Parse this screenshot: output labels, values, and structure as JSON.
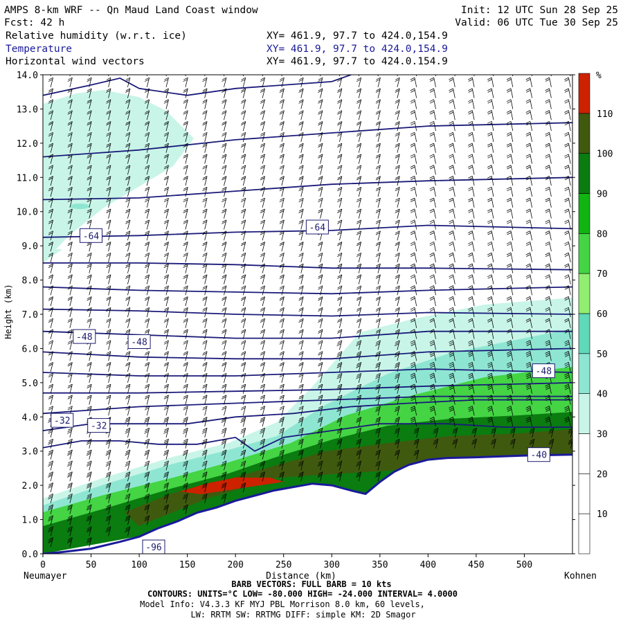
{
  "header": {
    "title": "AMPS 8-km WRF -- Qn Maud Land Coast window",
    "init": "Init: 12 UTC Sun 28 Sep 25",
    "fcst": "Fcst:   42 h",
    "valid": "Valid: 06 UTC Tue 30 Sep 25",
    "fields": [
      {
        "name": "Relative humidity (w.r.t. ice)",
        "xy": "XY= 461.9, 97.7 to 424.0,154.9"
      },
      {
        "name": "Temperature",
        "xy": "XY= 461.9, 97.7 to 424.0,154.9"
      },
      {
        "name": "Horizontal wind vectors",
        "xy": "XY= 461.9, 97.7 to 424.0.154.9"
      }
    ]
  },
  "chart_data": {
    "type": "heatmap",
    "xlabel": "Distance (km)",
    "ylabel": "Height (km)",
    "xlim": [
      0,
      550
    ],
    "ylim": [
      0,
      14
    ],
    "xticks": [
      0,
      50,
      100,
      150,
      200,
      250,
      300,
      350,
      400,
      450,
      500
    ],
    "yticks": [
      "0.0",
      "1.0",
      "2.0",
      "3.0",
      "4.0",
      "5.0",
      "6.0",
      "7.0",
      "8.0",
      "9.0",
      "10.0",
      "11.0",
      "12.0",
      "13.0",
      "14.0"
    ],
    "endpoints": {
      "left": "Neumayer",
      "right": "Kohnen"
    },
    "colorbar": {
      "unit": "%",
      "levels": [
        10,
        20,
        30,
        40,
        50,
        60,
        70,
        80,
        90,
        100,
        110
      ],
      "colors": [
        "#ffffff",
        "#ffffff",
        "#ffffff",
        "#c8f5e8",
        "#8ee6d2",
        "#5fd9b8",
        "#90ee70",
        "#44d444",
        "#11b411",
        "#0a7c10",
        "#3f5a0e",
        "#cc2200"
      ]
    },
    "terrain": [
      [
        0,
        0
      ],
      [
        20,
        0.05
      ],
      [
        50,
        0.15
      ],
      [
        80,
        0.35
      ],
      [
        100,
        0.5
      ],
      [
        120,
        0.75
      ],
      [
        140,
        0.95
      ],
      [
        160,
        1.2
      ],
      [
        180,
        1.35
      ],
      [
        200,
        1.55
      ],
      [
        220,
        1.7
      ],
      [
        240,
        1.85
      ],
      [
        260,
        1.95
      ],
      [
        280,
        2.05
      ],
      [
        300,
        2.0
      ],
      [
        320,
        1.85
      ],
      [
        335,
        1.75
      ],
      [
        350,
        2.1
      ],
      [
        365,
        2.4
      ],
      [
        380,
        2.6
      ],
      [
        400,
        2.75
      ],
      [
        420,
        2.8
      ],
      [
        450,
        2.82
      ],
      [
        480,
        2.85
      ],
      [
        500,
        2.87
      ],
      [
        550,
        2.9
      ]
    ],
    "temperature_contours": [
      {
        "value": -32,
        "label": "-32",
        "points": [
          [
            0,
            3.1
          ],
          [
            40,
            3.3
          ],
          [
            80,
            3.3
          ],
          [
            120,
            3.2
          ],
          [
            160,
            3.2
          ],
          [
            200,
            3.4
          ],
          [
            220,
            3.0
          ],
          [
            250,
            3.4
          ],
          [
            300,
            3.6
          ],
          [
            350,
            3.8
          ],
          [
            420,
            3.8
          ],
          [
            480,
            3.7
          ],
          [
            550,
            3.7
          ]
        ]
      },
      {
        "value": -36,
        "label": "",
        "points": [
          [
            0,
            3.6
          ],
          [
            50,
            3.8
          ],
          [
            100,
            3.8
          ],
          [
            150,
            3.8
          ],
          [
            200,
            4.0
          ],
          [
            260,
            4.1
          ],
          [
            320,
            4.3
          ],
          [
            380,
            4.4
          ],
          [
            450,
            4.5
          ],
          [
            550,
            4.5
          ]
        ]
      },
      {
        "value": -40,
        "label": "",
        "points": [
          [
            0,
            4.1
          ],
          [
            50,
            4.2
          ],
          [
            100,
            4.3
          ],
          [
            200,
            4.4
          ],
          [
            300,
            4.5
          ],
          [
            400,
            4.6
          ],
          [
            550,
            4.6
          ]
        ]
      },
      {
        "value": -44,
        "label": "",
        "points": [
          [
            0,
            4.7
          ],
          [
            100,
            4.7
          ],
          [
            200,
            4.75
          ],
          [
            300,
            4.8
          ],
          [
            400,
            4.9
          ],
          [
            550,
            5.0
          ]
        ]
      },
      {
        "value": -48,
        "label": "-48",
        "points": [
          [
            0,
            5.3
          ],
          [
            100,
            5.2
          ],
          [
            200,
            5.2
          ],
          [
            300,
            5.3
          ],
          [
            400,
            5.4
          ],
          [
            550,
            5.3
          ]
        ]
      },
      {
        "value": -52,
        "label": "",
        "points": [
          [
            0,
            5.9
          ],
          [
            100,
            5.75
          ],
          [
            200,
            5.7
          ],
          [
            300,
            5.7
          ],
          [
            400,
            5.9
          ],
          [
            550,
            6.0
          ]
        ]
      },
      {
        "value": -56,
        "label": "",
        "points": [
          [
            0,
            6.5
          ],
          [
            100,
            6.4
          ],
          [
            200,
            6.3
          ],
          [
            300,
            6.3
          ],
          [
            400,
            6.5
          ],
          [
            550,
            6.5
          ]
        ]
      },
      {
        "value": -60,
        "label": "",
        "points": [
          [
            0,
            7.15
          ],
          [
            100,
            7.1
          ],
          [
            200,
            7.0
          ],
          [
            300,
            6.95
          ],
          [
            400,
            7.05
          ],
          [
            550,
            7.0
          ]
        ]
      },
      {
        "value": -64,
        "label": "",
        "points": [
          [
            0,
            7.8
          ],
          [
            100,
            7.7
          ],
          [
            200,
            7.65
          ],
          [
            300,
            7.6
          ],
          [
            400,
            7.7
          ],
          [
            550,
            7.8
          ]
        ]
      },
      {
        "value": -68,
        "label": "",
        "points": [
          [
            0,
            8.5
          ],
          [
            100,
            8.5
          ],
          [
            200,
            8.45
          ],
          [
            300,
            8.35
          ],
          [
            400,
            8.35
          ],
          [
            550,
            8.3
          ]
        ]
      },
      {
        "value": -64,
        "label": "-64",
        "points": [
          [
            0,
            9.25
          ],
          [
            100,
            9.3
          ],
          [
            200,
            9.4
          ],
          [
            300,
            9.45
          ],
          [
            400,
            9.6
          ],
          [
            550,
            9.5
          ]
        ]
      },
      {
        "value": -60,
        "label": "",
        "points": [
          [
            0,
            10.35
          ],
          [
            100,
            10.4
          ],
          [
            200,
            10.6
          ],
          [
            300,
            10.8
          ],
          [
            400,
            10.9
          ],
          [
            550,
            11.0
          ]
        ]
      },
      {
        "value": -56,
        "label": "",
        "points": [
          [
            0,
            11.6
          ],
          [
            100,
            11.8
          ],
          [
            200,
            12.1
          ],
          [
            300,
            12.3
          ],
          [
            400,
            12.5
          ],
          [
            550,
            12.6
          ]
        ]
      },
      {
        "value": -52,
        "label": "",
        "points": [
          [
            0,
            13.4
          ],
          [
            50,
            13.7
          ],
          [
            80,
            13.9
          ],
          [
            100,
            13.6
          ],
          [
            150,
            13.4
          ],
          [
            200,
            13.6
          ],
          [
            300,
            13.8
          ],
          [
            320,
            14.0
          ]
        ]
      }
    ],
    "contour_labels": [
      {
        "text": "-64",
        "x": 50,
        "y": 9.3
      },
      {
        "text": "-64",
        "x": 285,
        "y": 9.55
      },
      {
        "text": "-48",
        "x": 43,
        "y": 6.35
      },
      {
        "text": "-48",
        "x": 100,
        "y": 6.2
      },
      {
        "text": "-48",
        "x": 520,
        "y": 5.35
      },
      {
        "text": "-32",
        "x": 20,
        "y": 3.9
      },
      {
        "text": "-32",
        "x": 58,
        "y": 3.75
      },
      {
        "text": "-40",
        "x": 515,
        "y": 2.9
      },
      {
        "text": "-96",
        "x": 115,
        "y": 0.2
      }
    ]
  },
  "footer": {
    "left_station": "Neumayer",
    "right_station": "Kohnen",
    "xlabel": "Distance (km)",
    "barb_note": "BARB VECTORS:  FULL BARB = 10 kts",
    "contours": "CONTOURS:  UNITS=°C  LOW= -80.000      HIGH= -24.000      INTERVAL=   4.0000",
    "model_info": "Model Info: V4.3.3   KF      MYJ PBL  Morrison          8.0 km,  60 levels,",
    "physics": "LW: RRTM SW: RRTMG   DIFF: simple KM: 2D Smagor"
  }
}
